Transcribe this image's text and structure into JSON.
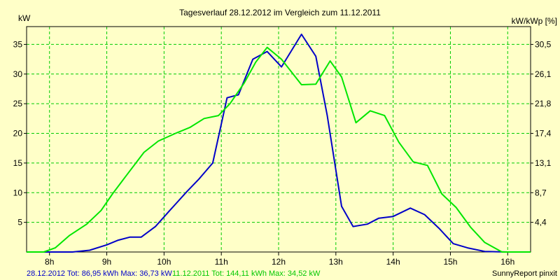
{
  "chart_data": {
    "type": "line",
    "title": "Tagesverlauf 28.12.2012 im Vergleich zum 11.12.2011",
    "ylabel": "kW",
    "ylabel_right": "kW/kWp [%]",
    "xlim": [
      7.6,
      16.4
    ],
    "ylim": [
      0,
      38
    ],
    "x_ticks": [
      8,
      9,
      10,
      11,
      12,
      13,
      14,
      15,
      16
    ],
    "x_tick_labels": [
      "8h",
      "9h",
      "10h",
      "11h",
      "12h",
      "13h",
      "14h",
      "15h",
      "16h"
    ],
    "y_ticks": [
      5,
      10,
      15,
      20,
      25,
      30,
      35
    ],
    "y_tick_labels": [
      "5",
      "10",
      "15",
      "20",
      "25",
      "30",
      "35"
    ],
    "y2_ticks": [
      5,
      10,
      15,
      20,
      25,
      30,
      35
    ],
    "y2_tick_labels": [
      "4,4",
      "8,7",
      "13,1",
      "17,4",
      "21,8",
      "26,1",
      "30,5"
    ],
    "grid": true,
    "colors": {
      "background": "#ffffc8",
      "grid": "#00cc00",
      "series_2012": "#0000c8",
      "series_2011": "#00e600"
    },
    "series": [
      {
        "name": "28.12.2012",
        "color": "#0000c8",
        "points": [
          [
            7.6,
            0
          ],
          [
            8.0,
            0
          ],
          [
            8.4,
            0
          ],
          [
            8.7,
            0.3
          ],
          [
            9.0,
            1.2
          ],
          [
            9.2,
            2.0
          ],
          [
            9.4,
            2.5
          ],
          [
            9.6,
            2.5
          ],
          [
            9.85,
            4.3
          ],
          [
            10.1,
            7.0
          ],
          [
            10.4,
            10.2
          ],
          [
            10.6,
            12.2
          ],
          [
            10.85,
            15.0
          ],
          [
            11.1,
            26.0
          ],
          [
            11.3,
            26.5
          ],
          [
            11.55,
            32.5
          ],
          [
            11.8,
            33.8
          ],
          [
            12.05,
            31.2
          ],
          [
            12.4,
            36.7
          ],
          [
            12.65,
            33.0
          ],
          [
            12.85,
            23.0
          ],
          [
            13.1,
            7.7
          ],
          [
            13.3,
            4.3
          ],
          [
            13.55,
            4.7
          ],
          [
            13.75,
            5.7
          ],
          [
            14.0,
            6.0
          ],
          [
            14.3,
            7.4
          ],
          [
            14.55,
            6.3
          ],
          [
            14.8,
            4.0
          ],
          [
            15.05,
            1.4
          ],
          [
            15.3,
            0.7
          ],
          [
            15.6,
            0.1
          ],
          [
            16.0,
            0
          ],
          [
            16.4,
            0
          ]
        ]
      },
      {
        "name": "11.12.2011",
        "color": "#00e600",
        "points": [
          [
            7.6,
            0
          ],
          [
            7.9,
            0
          ],
          [
            8.1,
            0.7
          ],
          [
            8.35,
            2.8
          ],
          [
            8.65,
            4.7
          ],
          [
            8.9,
            7.0
          ],
          [
            9.1,
            9.8
          ],
          [
            9.35,
            13.0
          ],
          [
            9.65,
            16.8
          ],
          [
            9.9,
            18.7
          ],
          [
            10.2,
            20.0
          ],
          [
            10.45,
            21.0
          ],
          [
            10.7,
            22.5
          ],
          [
            10.95,
            23.0
          ],
          [
            11.15,
            25.0
          ],
          [
            11.4,
            28.5
          ],
          [
            11.6,
            32.0
          ],
          [
            11.8,
            34.5
          ],
          [
            12.05,
            32.5
          ],
          [
            12.4,
            28.2
          ],
          [
            12.65,
            28.3
          ],
          [
            12.9,
            32.2
          ],
          [
            13.1,
            29.5
          ],
          [
            13.35,
            21.8
          ],
          [
            13.6,
            23.8
          ],
          [
            13.85,
            23.0
          ],
          [
            14.1,
            18.5
          ],
          [
            14.35,
            15.2
          ],
          [
            14.6,
            14.6
          ],
          [
            14.85,
            9.8
          ],
          [
            15.1,
            7.5
          ],
          [
            15.35,
            4.2
          ],
          [
            15.6,
            1.6
          ],
          [
            15.9,
            0
          ],
          [
            16.1,
            0
          ],
          [
            16.4,
            0
          ]
        ]
      }
    ]
  },
  "footer": {
    "legend_2012": "28.12.2012 Tot: 86,95 kWh Max: 36,73 kW",
    "legend_2011": "11.12.2011 Tot: 144,11 kWh Max: 34,52 kW",
    "credit": "SunnyReport pinxit"
  }
}
